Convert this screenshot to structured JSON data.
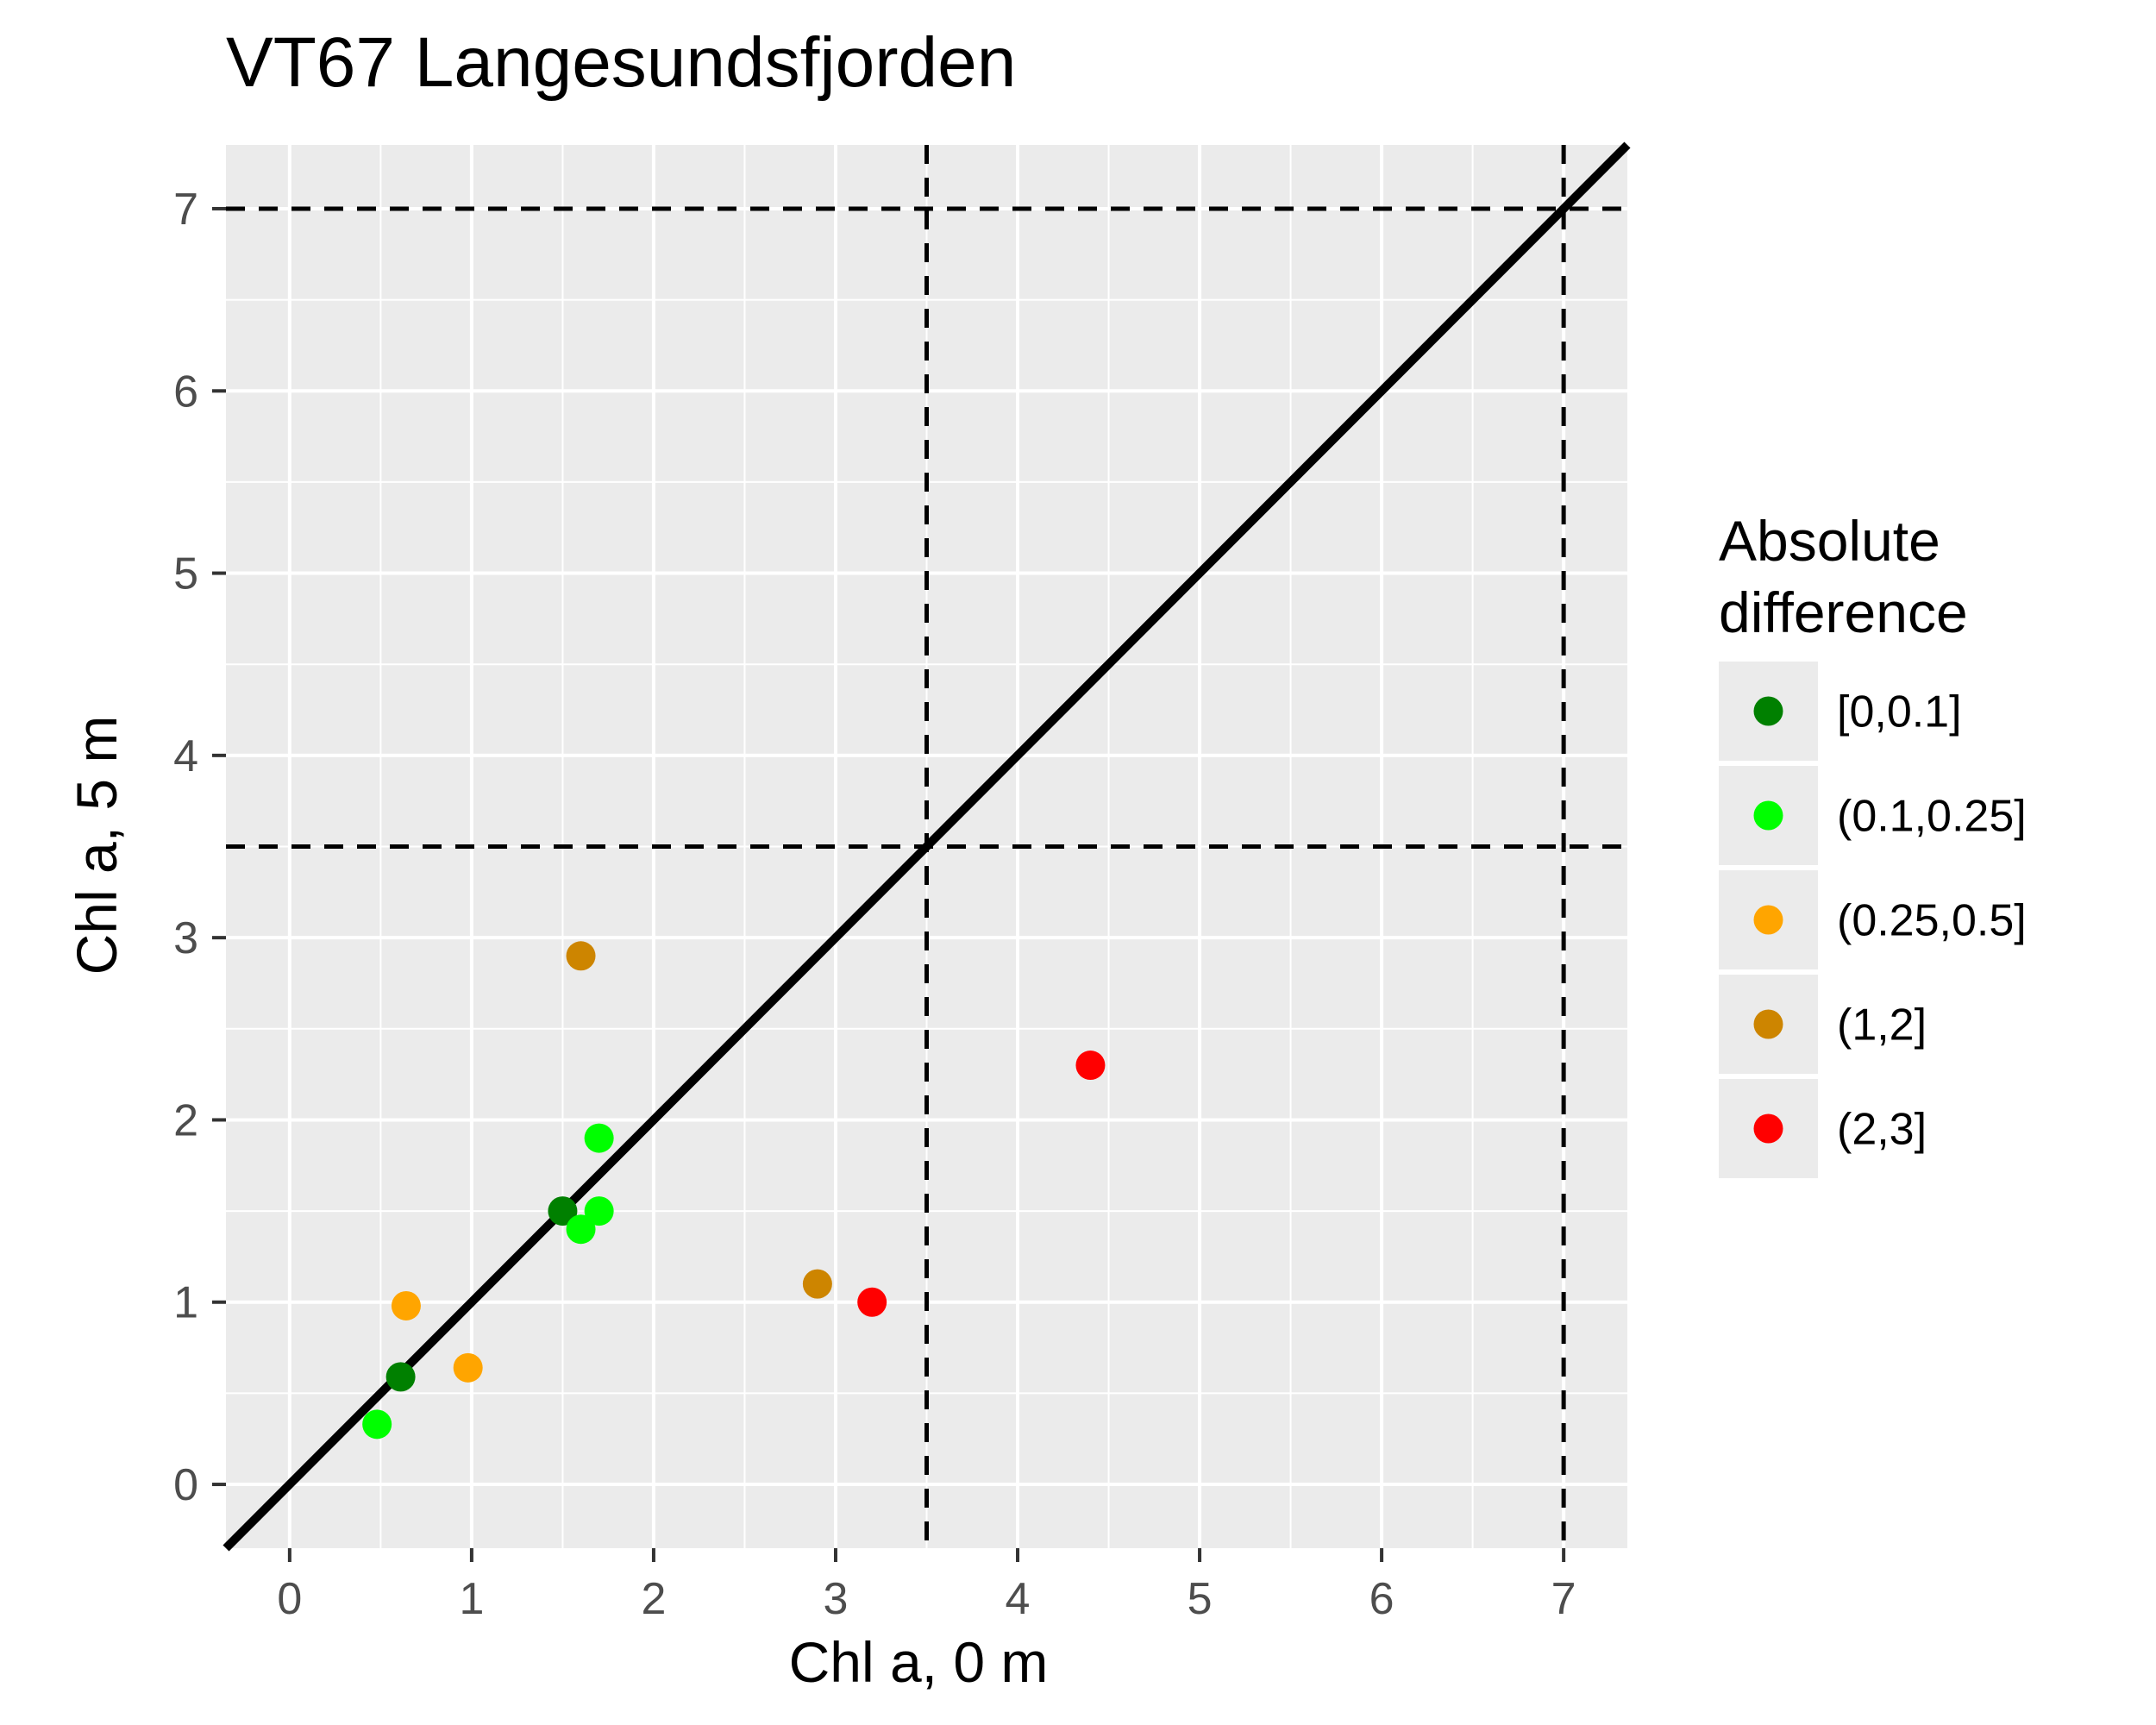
{
  "chart_data": {
    "type": "scatter",
    "title": "VT67 Langesundsfjorden",
    "xlabel": "Chl a, 0 m",
    "ylabel": "Chl a, 5 m",
    "xlim": [
      -0.35,
      7.35
    ],
    "ylim": [
      -0.35,
      7.35
    ],
    "x_ticks": [
      0,
      1,
      2,
      3,
      4,
      5,
      6,
      7
    ],
    "y_ticks": [
      0,
      1,
      2,
      3,
      4,
      5,
      6,
      7
    ],
    "grid": true,
    "background": "#ebebeb",
    "reference_lines": {
      "identity_line": "y = x",
      "vertical_dashed": [
        3.5,
        7
      ],
      "horizontal_dashed": [
        3.5,
        7
      ]
    },
    "legend": {
      "title": [
        "Absolute",
        "difference"
      ],
      "placement": "right",
      "entries": [
        {
          "label": "[0,0.1]",
          "color": "#008000"
        },
        {
          "label": "(0.1,0.25]",
          "color": "#00ff00"
        },
        {
          "label": "(0.25,0.5]",
          "color": "#ffa500"
        },
        {
          "label": "(1,2]",
          "color": "#cd8500"
        },
        {
          "label": "(2,3]",
          "color": "#ff0000"
        }
      ]
    },
    "points": [
      {
        "x": 0.61,
        "y": 0.59,
        "group": "[0,0.1]"
      },
      {
        "x": 1.5,
        "y": 1.5,
        "group": "[0,0.1]"
      },
      {
        "x": 0.48,
        "y": 0.33,
        "group": "(0.1,0.25]"
      },
      {
        "x": 1.6,
        "y": 1.4,
        "group": "(0.1,0.25]"
      },
      {
        "x": 1.7,
        "y": 1.5,
        "group": "(0.1,0.25]"
      },
      {
        "x": 1.7,
        "y": 1.9,
        "group": "(0.1,0.25]"
      },
      {
        "x": 0.64,
        "y": 0.98,
        "group": "(0.25,0.5]"
      },
      {
        "x": 0.98,
        "y": 0.64,
        "group": "(0.25,0.5]"
      },
      {
        "x": 1.6,
        "y": 2.9,
        "group": "(1,2]"
      },
      {
        "x": 2.9,
        "y": 1.1,
        "group": "(1,2]"
      },
      {
        "x": 3.2,
        "y": 1.0,
        "group": "(2,3]"
      },
      {
        "x": 4.4,
        "y": 2.3,
        "group": "(2,3]"
      }
    ]
  }
}
